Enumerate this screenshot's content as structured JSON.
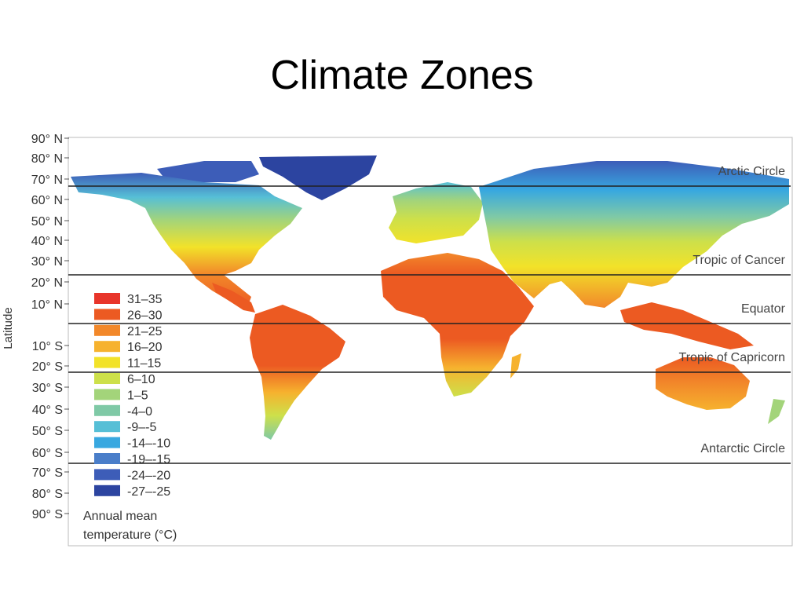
{
  "slide": {
    "title": "Climate Zones"
  },
  "map": {
    "axis_label": "Latitude",
    "latitude_ticks": [
      "90° N",
      "80° N",
      "70° N",
      "60° N",
      "50° N",
      "40° N",
      "30° N",
      "20° N",
      "10° N",
      "10° S",
      "20° S",
      "30° S",
      "40° S",
      "50° S",
      "60° S",
      "70° S",
      "80° S",
      "90° S"
    ],
    "reference_lines": [
      {
        "name": "Arctic Circle",
        "latitude": 66.5
      },
      {
        "name": "Tropic of Cancer",
        "latitude": 23.5
      },
      {
        "name": "Equator",
        "latitude": 0
      },
      {
        "name": "Tropic of Capricorn",
        "latitude": -23.5
      },
      {
        "name": "Antarctic Circle",
        "latitude": -66.5
      }
    ],
    "legend": {
      "title_line1": "Annual mean",
      "title_line2": "temperature (°C)",
      "items": [
        {
          "label": "31–35",
          "color": "#e8352a"
        },
        {
          "label": "26–30",
          "color": "#ec5a22"
        },
        {
          "label": "21–25",
          "color": "#f2882a"
        },
        {
          "label": "16–20",
          "color": "#f6b22e"
        },
        {
          "label": "11–15",
          "color": "#f2e229"
        },
        {
          "label": "6–10",
          "color": "#cde04a"
        },
        {
          "label": "1–5",
          "color": "#a3d47a"
        },
        {
          "label": "-4–0",
          "color": "#7fc9a6"
        },
        {
          "label": "-9–-5",
          "color": "#56bfd6"
        },
        {
          "label": "-14–-10",
          "color": "#38a8e0"
        },
        {
          "label": "-19–-15",
          "color": "#4a7ec9"
        },
        {
          "label": "-24–-20",
          "color": "#3d5db8"
        },
        {
          "label": "-27–-25",
          "color": "#2c44a0"
        }
      ]
    }
  }
}
